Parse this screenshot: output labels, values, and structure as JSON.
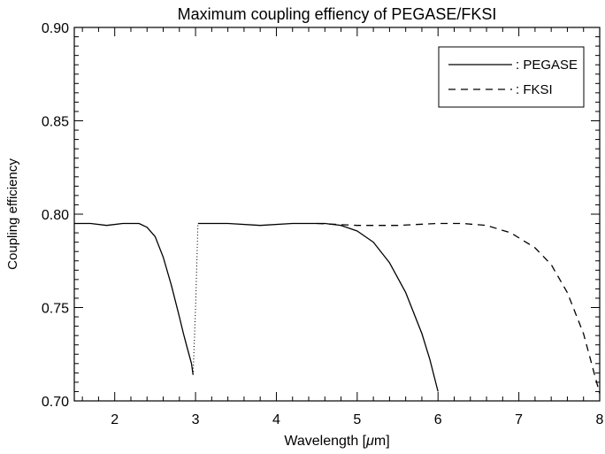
{
  "chart_data": {
    "type": "line",
    "title": "Maximum coupling effiency of PEGASE/FKSI",
    "xlabel_prefix": "Wavelength [",
    "xlabel_mu": "μ",
    "xlabel_suffix": "m]",
    "ylabel": "Coupling efficiency",
    "xlim": [
      1.5,
      8.0
    ],
    "ylim": [
      0.7,
      0.9
    ],
    "xticks": [
      2,
      3,
      4,
      5,
      6,
      7,
      8
    ],
    "yticks": [
      0.7,
      0.75,
      0.8,
      0.85,
      0.9
    ],
    "ytick_labels": [
      "0.70",
      "0.75",
      "0.80",
      "0.85",
      "0.90"
    ],
    "grid": false,
    "legend_position": "top-right",
    "legend": [
      {
        "label": ": PEGASE",
        "style": "solid"
      },
      {
        "label": ": FKSI",
        "style": "dashed"
      }
    ],
    "series": [
      {
        "name": "PEGASE",
        "style": "solid",
        "x": [
          1.5,
          1.7,
          1.9,
          2.1,
          2.3,
          2.4,
          2.5,
          2.6,
          2.7,
          2.8,
          2.85,
          2.9,
          2.95,
          2.97
        ],
        "y": [
          0.795,
          0.795,
          0.794,
          0.795,
          0.795,
          0.793,
          0.788,
          0.777,
          0.762,
          0.745,
          0.736,
          0.728,
          0.72,
          0.714
        ]
      },
      {
        "name": "PEGASE",
        "style": "dotted",
        "x": [
          2.97,
          3.0,
          3.03
        ],
        "y": [
          0.714,
          0.75,
          0.795
        ]
      },
      {
        "name": "PEGASE",
        "style": "solid",
        "x": [
          3.03,
          3.4,
          3.8,
          4.2,
          4.6,
          4.8,
          5.0,
          5.2,
          5.4,
          5.6,
          5.8,
          5.9,
          6.0
        ],
        "y": [
          0.795,
          0.795,
          0.794,
          0.795,
          0.795,
          0.794,
          0.791,
          0.785,
          0.774,
          0.758,
          0.736,
          0.722,
          0.705
        ]
      },
      {
        "name": "FKSI",
        "style": "dashed",
        "x": [
          4.5,
          5.0,
          5.5,
          6.0,
          6.3,
          6.6,
          6.9,
          7.2,
          7.4,
          7.6,
          7.8,
          7.95,
          8.0
        ],
        "y": [
          0.795,
          0.794,
          0.794,
          0.795,
          0.795,
          0.794,
          0.79,
          0.782,
          0.773,
          0.758,
          0.736,
          0.712,
          0.704
        ]
      }
    ]
  }
}
